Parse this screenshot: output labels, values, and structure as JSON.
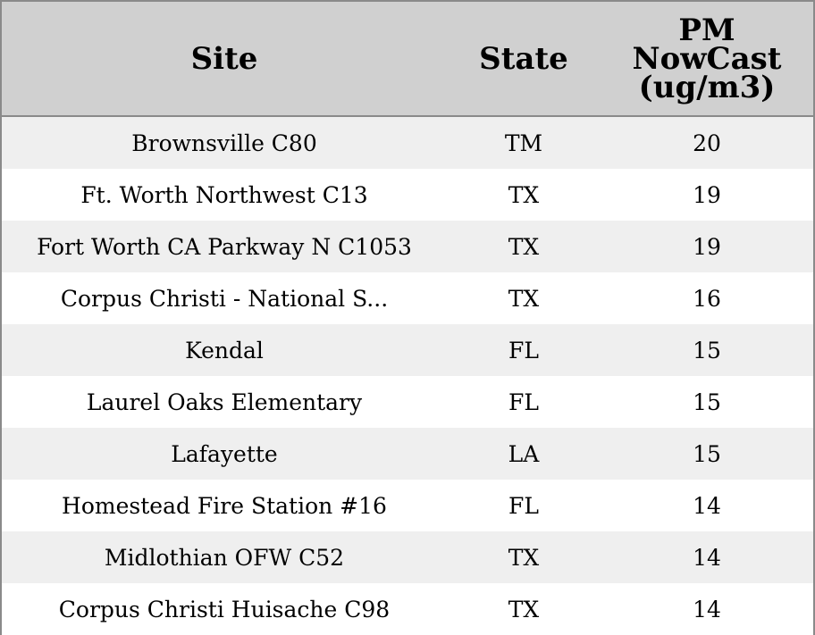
{
  "chart_data": {
    "type": "table",
    "columns": [
      "Site",
      "State",
      "PM NowCast (ug/m3)"
    ],
    "header_lines": {
      "site": [
        "Site"
      ],
      "state": [
        "State"
      ],
      "pm": [
        "PM",
        "NowCast",
        "(ug/m3)"
      ]
    },
    "rows": [
      {
        "site": "Brownsville C80",
        "state": "TM",
        "pm": "20"
      },
      {
        "site": "Ft. Worth Northwest C13",
        "state": "TX",
        "pm": "19"
      },
      {
        "site": "Fort Worth CA Parkway N C1053",
        "state": "TX",
        "pm": "19"
      },
      {
        "site": "Corpus Christi - National S...",
        "state": "TX",
        "pm": "16"
      },
      {
        "site": "Kendal",
        "state": "FL",
        "pm": "15"
      },
      {
        "site": "Laurel Oaks Elementary",
        "state": "FL",
        "pm": "15"
      },
      {
        "site": "Lafayette",
        "state": "LA",
        "pm": "15"
      },
      {
        "site": "Homestead Fire Station #16",
        "state": "FL",
        "pm": "14"
      },
      {
        "site": "Midlothian OFW C52",
        "state": "TX",
        "pm": "14"
      },
      {
        "site": "Corpus Christi Huisache C98",
        "state": "TX",
        "pm": "14"
      }
    ]
  },
  "colors": {
    "header_background": "#d0d0d0",
    "row_stripe": "#efefef",
    "row_plain": "#ffffff",
    "border": "#8a8a8a",
    "text": "#000000"
  }
}
